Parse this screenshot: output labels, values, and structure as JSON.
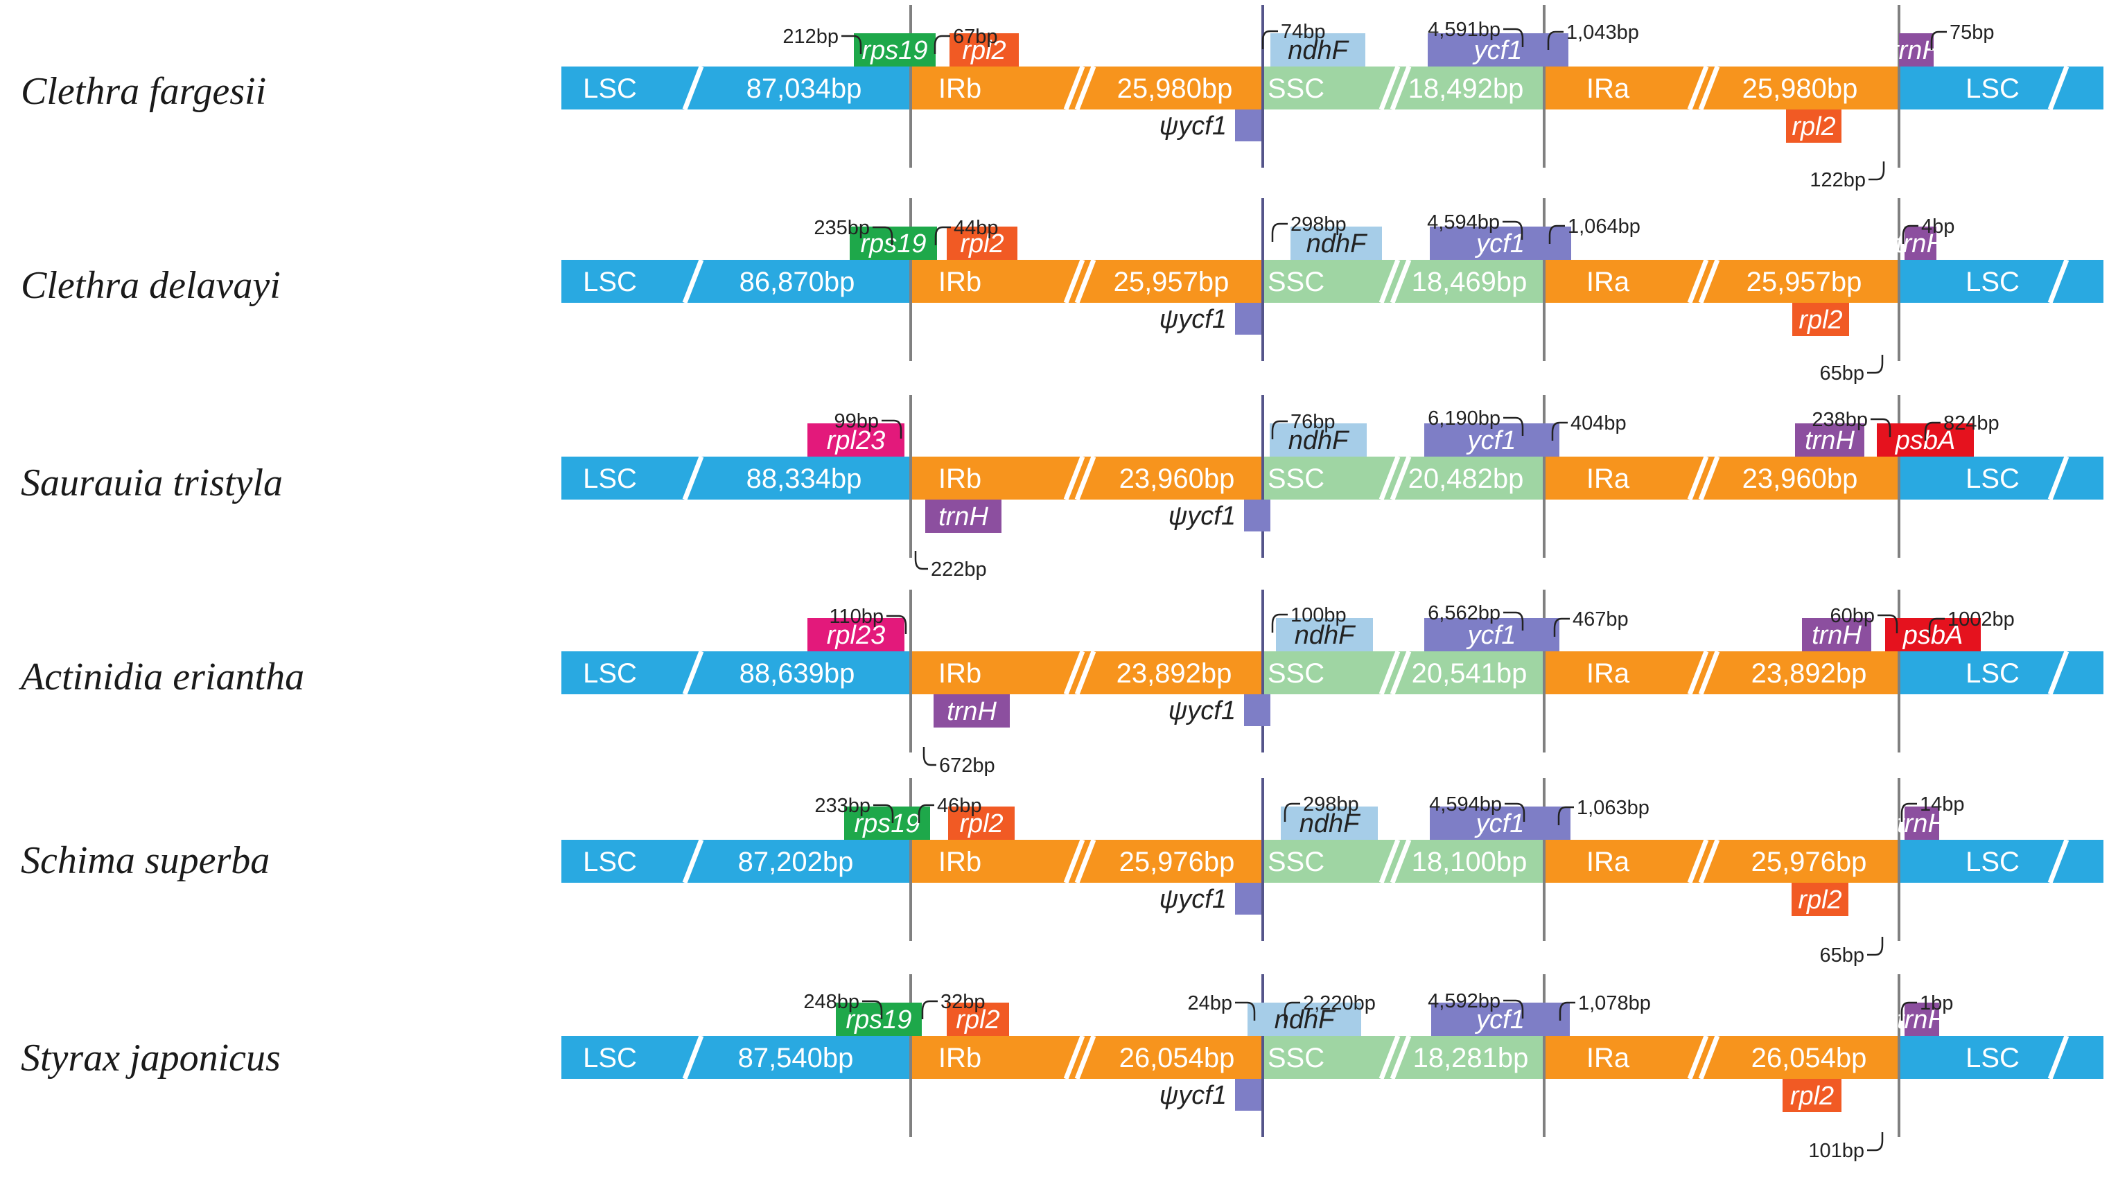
{
  "colors": {
    "LSC": "#29a9e1",
    "IR": "#f7941d",
    "SSC": "#9fd5a3",
    "rps19": "#1ea84a",
    "rpl2": "#f15a24",
    "rpl23": "#e3197b",
    "trnH": "#8c4f9f",
    "psbA": "#e5121e",
    "ndhF": "#a6cde8",
    "ycf1": "#7e7ec6",
    "psi": "#7e7ec6",
    "junction": "#808080",
    "leader": "#222222"
  },
  "region_labels": {
    "lsc": "LSC",
    "irb": "IRb",
    "ssc": "SSC",
    "ira": "IRa"
  },
  "species": [
    {
      "name": "Clethra fargesii",
      "lsc_len": "87,034bp",
      "ir_len": "25,980bp",
      "ssc_len": "18,492bp",
      "ira_len": "25,980bp",
      "psi": "ψycf1",
      "genes": [
        {
          "gene": "rps19",
          "pos": "top"
        },
        {
          "gene": "rpl2",
          "pos": "top"
        },
        {
          "gene": "ndhF",
          "pos": "top"
        },
        {
          "gene": "ycf1",
          "pos": "top"
        },
        {
          "gene": "trnH",
          "pos": "top"
        },
        {
          "gene": "rpl2",
          "pos": "bottom"
        }
      ],
      "labels": [
        "212bp",
        "67bp",
        "74bp",
        "4,591bp",
        "1,043bp",
        "75bp",
        "122bp"
      ]
    },
    {
      "name": "Clethra delavayi",
      "lsc_len": "86,870bp",
      "ir_len": "25,957bp",
      "ssc_len": "18,469bp",
      "ira_len": "25,957bp",
      "psi": "ψycf1",
      "genes": [
        {
          "gene": "rps19",
          "pos": "top"
        },
        {
          "gene": "rpl2",
          "pos": "top"
        },
        {
          "gene": "ndhF",
          "pos": "top"
        },
        {
          "gene": "ycf1",
          "pos": "top"
        },
        {
          "gene": "trnH",
          "pos": "top"
        },
        {
          "gene": "rpl2",
          "pos": "bottom"
        }
      ],
      "labels": [
        "235bp",
        "44bp",
        "298bp",
        "4,594bp",
        "1,064bp",
        "4bp",
        "65bp"
      ]
    },
    {
      "name": "Saurauia tristyla",
      "lsc_len": "88,334bp",
      "ir_len": "23,960bp",
      "ssc_len": "20,482bp",
      "ira_len": "23,960bp",
      "psi": "ψycf1",
      "genes": [
        {
          "gene": "rpl23",
          "pos": "top"
        },
        {
          "gene": "trnH",
          "pos": "bottom"
        },
        {
          "gene": "ndhF",
          "pos": "top"
        },
        {
          "gene": "ycf1",
          "pos": "top"
        },
        {
          "gene": "trnH",
          "pos": "top"
        },
        {
          "gene": "psbA",
          "pos": "top"
        }
      ],
      "labels": [
        "99bp",
        "222bp",
        "76bp",
        "6,190bp",
        "404bp",
        "238bp",
        "824bp"
      ]
    },
    {
      "name": "Actinidia eriantha",
      "lsc_len": "88,639bp",
      "ir_len": "23,892bp",
      "ssc_len": "20,541bp",
      "ira_len": "23,892bp",
      "psi": "ψycf1",
      "genes": [
        {
          "gene": "rpl23",
          "pos": "top"
        },
        {
          "gene": "trnH",
          "pos": "bottom"
        },
        {
          "gene": "ndhF",
          "pos": "top"
        },
        {
          "gene": "ycf1",
          "pos": "top"
        },
        {
          "gene": "trnH",
          "pos": "top"
        },
        {
          "gene": "psbA",
          "pos": "top"
        }
      ],
      "labels": [
        "110bp",
        "672bp",
        "100bp",
        "6,562bp",
        "467bp",
        "60bp",
        "1002bp"
      ]
    },
    {
      "name": "Schima superba",
      "lsc_len": "87,202bp",
      "ir_len": "25,976bp",
      "ssc_len": "18,100bp",
      "ira_len": "25,976bp",
      "psi": "ψycf1",
      "genes": [
        {
          "gene": "rps19",
          "pos": "top"
        },
        {
          "gene": "rpl2",
          "pos": "top"
        },
        {
          "gene": "ndhF",
          "pos": "top"
        },
        {
          "gene": "ycf1",
          "pos": "top"
        },
        {
          "gene": "trnH",
          "pos": "top"
        },
        {
          "gene": "rpl2",
          "pos": "bottom"
        }
      ],
      "labels": [
        "233bp",
        "46bp",
        "298bp",
        "4,594bp",
        "1,063bp",
        "14bp",
        "65bp"
      ]
    },
    {
      "name": "Styrax japonicus",
      "lsc_len": "87,540bp",
      "ir_len": "26,054bp",
      "ssc_len": "18,281bp",
      "ira_len": "26,054bp",
      "psi": "ψycf1",
      "genes": [
        {
          "gene": "rps19",
          "pos": "top"
        },
        {
          "gene": "rpl2",
          "pos": "top"
        },
        {
          "gene": "ndhF",
          "pos": "top"
        },
        {
          "gene": "ycf1",
          "pos": "top"
        },
        {
          "gene": "trnH",
          "pos": "top"
        },
        {
          "gene": "rpl2",
          "pos": "bottom"
        }
      ],
      "labels": [
        "248bp",
        "32bp",
        "24bp",
        "2,220bp",
        "4,592bp",
        "1,078bp",
        "1bp",
        "101bp"
      ]
    }
  ]
}
